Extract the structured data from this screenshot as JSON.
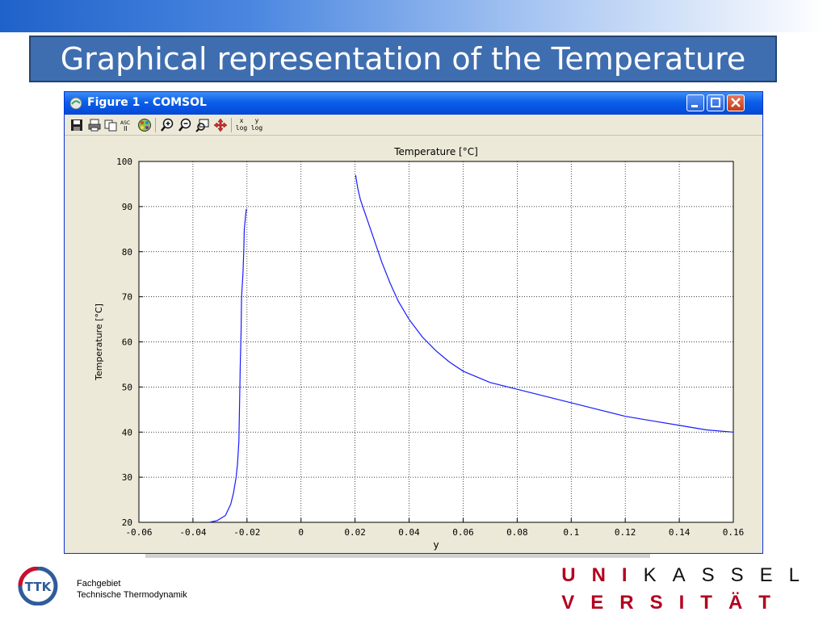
{
  "slide": {
    "title": "Graphical representation of the Temperature",
    "footer_line1": "Fachgebiet",
    "footer_line2": "Technische Thermodynamik",
    "ttk_logo_text": "TTK",
    "uni_line1_red": "UNI",
    "uni_line1_black": "KASSEL",
    "uni_line2": "VERSITÄT"
  },
  "window": {
    "title": "Figure 1 - COMSOL",
    "accent": "#0a5fe8",
    "toolbar_icons": [
      "save-icon",
      "print-icon",
      "copy-icon",
      "text-icon",
      "color-palette-icon",
      "zoom-in-icon",
      "zoom-out-icon",
      "zoom-box-icon",
      "pan-icon"
    ],
    "xlog_label": "x",
    "ylog_label": "y",
    "log_suffix": "log"
  },
  "chart_data": {
    "type": "line",
    "title": "Temperature [°C]",
    "xlabel": "y",
    "ylabel": "Temperature [°C]",
    "xlim": [
      -0.06,
      0.16
    ],
    "ylim": [
      20,
      100
    ],
    "xticks": [
      "-0.06",
      "-0.04",
      "-0.02",
      "0",
      "0.02",
      "0.04",
      "0.06",
      "0.08",
      "0.1",
      "0.12",
      "0.14",
      "0.16"
    ],
    "yticks": [
      "20",
      "30",
      "40",
      "50",
      "60",
      "70",
      "80",
      "90",
      "100"
    ],
    "grid": true,
    "color": "#1a1aff",
    "series": [
      {
        "x": [
          -0.034,
          -0.031,
          -0.028,
          -0.026,
          -0.025,
          -0.024,
          -0.0235,
          -0.023,
          -0.0228,
          -0.0225,
          -0.0222,
          -0.022,
          -0.0215,
          -0.0212,
          -0.021,
          -0.0205,
          -0.0202
        ],
        "y": [
          20,
          20.4,
          21.5,
          24,
          26.5,
          30,
          33,
          38,
          45,
          55,
          62,
          70,
          75,
          80,
          85,
          88,
          89.5
        ]
      },
      {
        "x": [
          0.0202,
          0.021,
          0.022,
          0.024,
          0.026,
          0.028,
          0.03,
          0.033,
          0.036,
          0.04,
          0.045,
          0.05,
          0.055,
          0.06,
          0.07,
          0.08,
          0.09,
          0.1,
          0.11,
          0.12,
          0.13,
          0.14,
          0.15,
          0.16
        ],
        "y": [
          97,
          94,
          91.5,
          88,
          84.5,
          81,
          77.5,
          73,
          69,
          65,
          61,
          58,
          55.5,
          53.5,
          51,
          49.5,
          48,
          46.5,
          45,
          43.5,
          42.5,
          41.5,
          40.5,
          40
        ]
      }
    ]
  }
}
